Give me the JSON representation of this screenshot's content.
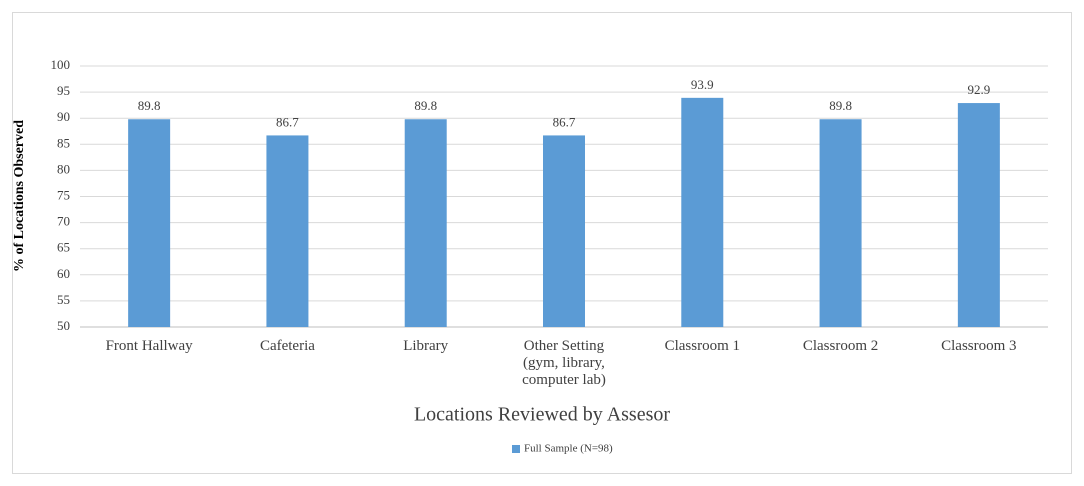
{
  "chart_data": {
    "type": "bar",
    "y_label": "% of Locations Observed",
    "x_label": "Locations Reviewed by Assesor",
    "categories": [
      "Front Hallway",
      "Cafeteria",
      "Library",
      "Other Setting (gym, library, computer lab)",
      "Classroom 1",
      "Classroom 2",
      "Classroom 3"
    ],
    "series": [
      {
        "name": "Full Sample (N=98)",
        "color": "#5b9bd5",
        "values": [
          89.8,
          86.7,
          89.8,
          86.7,
          93.9,
          89.8,
          92.9
        ]
      }
    ],
    "ylim": [
      50,
      100
    ],
    "yticks": [
      50,
      55,
      60,
      65,
      70,
      75,
      80,
      85,
      90,
      95,
      100
    ],
    "grid": true,
    "legend": "bottom"
  }
}
